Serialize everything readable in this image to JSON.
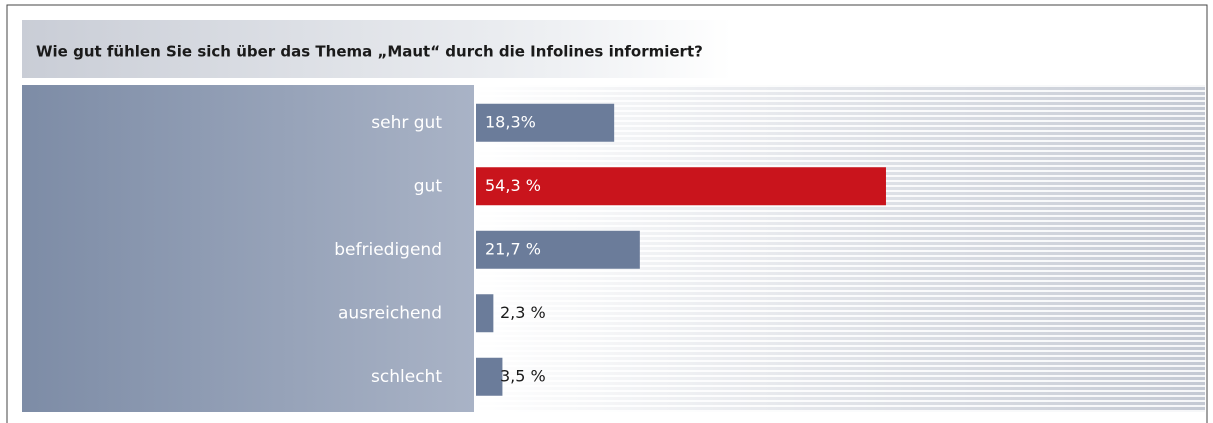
{
  "chart_data": {
    "type": "bar",
    "orientation": "horizontal",
    "title": "Wie gut fühlen Sie sich über das Thema „Maut“ durch die Infolines informiert?",
    "categories": [
      "sehr gut",
      "gut",
      "befriedigend",
      "ausreichend",
      "schlecht"
    ],
    "values": [
      18.3,
      54.3,
      21.7,
      2.3,
      3.5
    ],
    "value_labels": [
      "18,3%",
      "54,3 %",
      "21,7 %",
      "2,3 %",
      "3,5 %"
    ],
    "colors": [
      "#6b7c9a",
      "#c9141c",
      "#6b7c9a",
      "#6b7c9a",
      "#6b7c9a"
    ]
  }
}
